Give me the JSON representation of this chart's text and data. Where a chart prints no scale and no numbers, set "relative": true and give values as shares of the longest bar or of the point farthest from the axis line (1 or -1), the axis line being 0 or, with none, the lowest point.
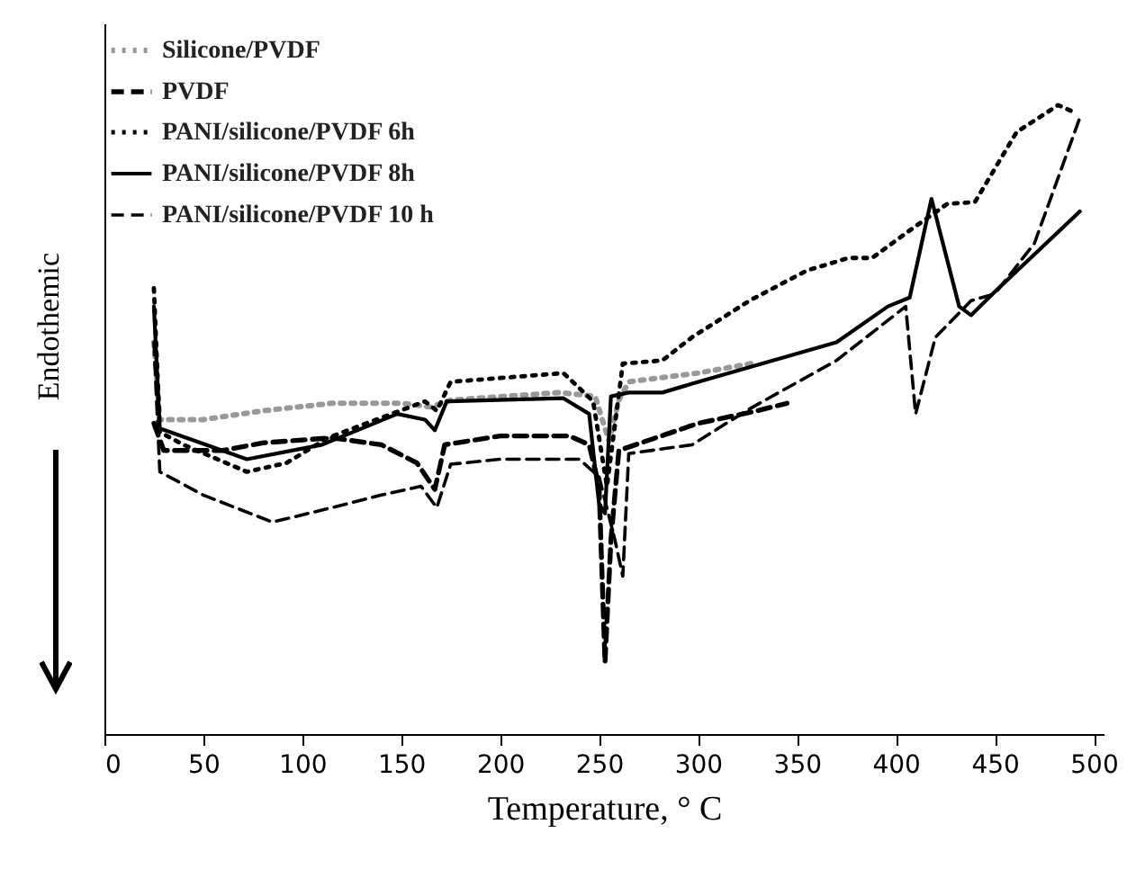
{
  "chart_data": {
    "type": "line",
    "relative": true,
    "xlabel": "Temperature, ° C",
    "ylabel": "Endothemic",
    "xlim": [
      0,
      505
    ],
    "xticks": [
      0,
      50,
      100,
      150,
      200,
      250,
      300,
      350,
      400,
      450,
      500
    ],
    "legend": "top left",
    "grid": false,
    "marker": "none",
    "series": [
      {
        "name": "Silicone/PVDF",
        "color": "#999999",
        "line_style": "dotted",
        "x": [
          25,
          28,
          50,
          80,
          115,
          150,
          165,
          175,
          230,
          248,
          255,
          260,
          265,
          300,
          330
        ],
        "values": [
          0.623,
          0.5,
          0.5,
          0.514,
          0.526,
          0.526,
          0.52,
          0.531,
          0.543,
          0.537,
          0.466,
          0.531,
          0.56,
          0.574,
          0.591
        ]
      },
      {
        "name": "PVDF",
        "color": "#000000",
        "line_style": "dashed",
        "x": [
          25,
          30,
          60,
          80,
          115,
          140,
          158,
          167,
          172,
          200,
          235,
          245,
          250,
          253,
          256,
          260,
          300,
          330,
          345
        ],
        "values": [
          0.494,
          0.451,
          0.451,
          0.463,
          0.471,
          0.46,
          0.431,
          0.389,
          0.46,
          0.474,
          0.474,
          0.46,
          0.394,
          0.114,
          0.309,
          0.451,
          0.494,
          0.514,
          0.526
        ]
      },
      {
        "name": "PANI/silicone/PVDF  6h",
        "color": "#000000",
        "line_style": "dotted",
        "x": [
          25,
          28,
          40,
          72,
          92,
          113,
          140,
          162,
          168,
          175,
          232,
          247,
          254,
          262,
          282,
          297,
          326,
          355,
          376,
          388,
          408,
          426,
          440,
          461,
          482,
          490
        ],
        "values": [
          0.709,
          0.48,
          0.46,
          0.417,
          0.431,
          0.471,
          0.503,
          0.529,
          0.514,
          0.56,
          0.574,
          0.529,
          0.394,
          0.589,
          0.594,
          0.631,
          0.689,
          0.737,
          0.757,
          0.757,
          0.803,
          0.843,
          0.846,
          0.957,
          1,
          0.989
        ]
      },
      {
        "name": "PANI/silicone/PVDF  8h",
        "color": "#000000",
        "line_style": "solid",
        "x": [
          25,
          28,
          72,
          110,
          148,
          162,
          167,
          173,
          232,
          245,
          250,
          253,
          256,
          265,
          282,
          297,
          370,
          396,
          407,
          418,
          432,
          438,
          449,
          493
        ],
        "values": [
          0.68,
          0.486,
          0.437,
          0.46,
          0.509,
          0.5,
          0.483,
          0.529,
          0.534,
          0.509,
          0.366,
          0.351,
          0.537,
          0.543,
          0.543,
          0.557,
          0.623,
          0.68,
          0.694,
          0.851,
          0.68,
          0.666,
          0.7,
          0.831
        ]
      },
      {
        "name": "PANI/silicone/PVDF  10 h",
        "color": "#000000",
        "line_style": "dashed",
        "x": [
          25,
          28,
          50,
          85,
          115,
          140,
          160,
          168,
          175,
          200,
          240,
          250,
          258,
          262,
          265,
          297,
          326,
          370,
          405,
          410,
          420,
          438,
          450,
          470,
          493
        ],
        "values": [
          0.623,
          0.417,
          0.38,
          0.337,
          0.36,
          0.38,
          0.394,
          0.36,
          0.429,
          0.437,
          0.437,
          0.409,
          0.309,
          0.251,
          0.446,
          0.46,
          0.517,
          0.594,
          0.68,
          0.509,
          0.631,
          0.689,
          0.7,
          0.78,
          0.98
        ]
      }
    ]
  }
}
